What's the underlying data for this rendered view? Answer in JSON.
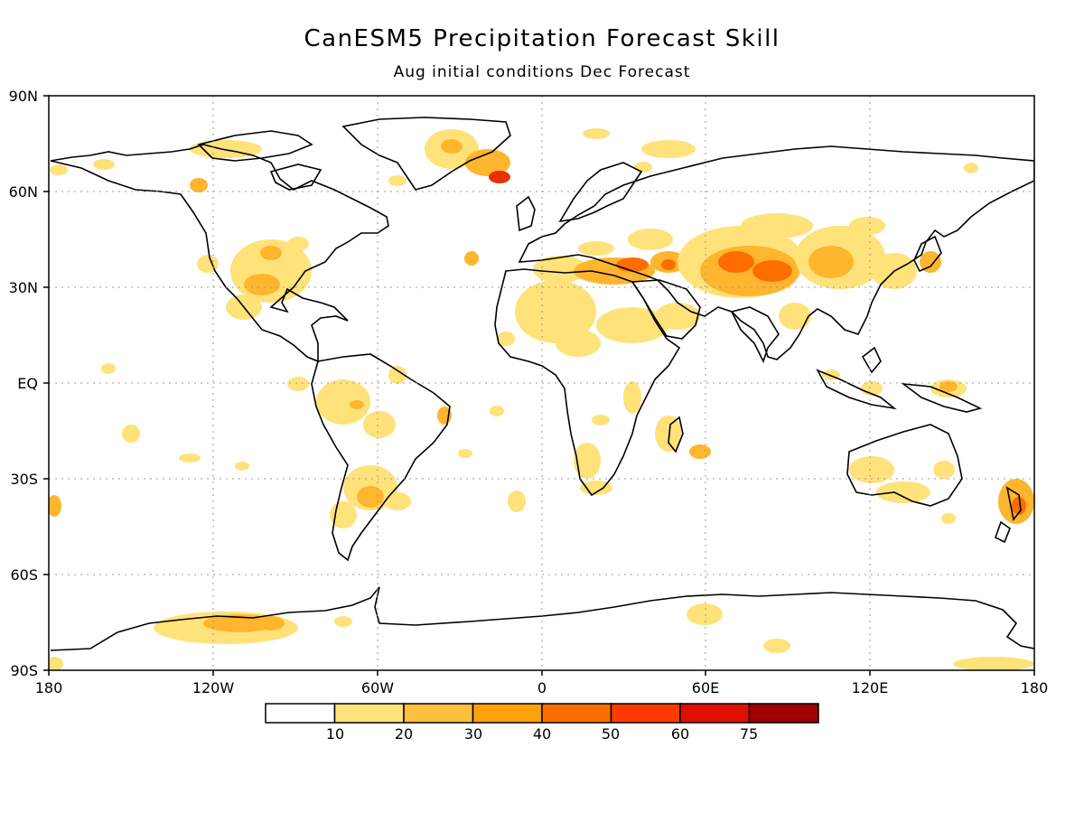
{
  "title": "CanESM5 Precipitation Forecast Skill",
  "subtitle": "Aug initial conditions  Dec Forecast",
  "lat_labels": [
    "90N",
    "60N",
    "30N",
    "EQ",
    "30S",
    "60S",
    "90S"
  ],
  "lon_labels": [
    "180",
    "120W",
    "60W",
    "0",
    "60E",
    "120E",
    "180"
  ],
  "colorbar": {
    "colors": [
      "#ffffff",
      "#ffe27a",
      "#ffc03d",
      "#ffa10a",
      "#ff6d00",
      "#ff3a00",
      "#e01000",
      "#a00000"
    ],
    "tick_labels": [
      "10",
      "20",
      "30",
      "40",
      "50",
      "60",
      "75"
    ]
  },
  "map": {
    "land_outline_color": "#000000",
    "grid_style": "dotted",
    "skill_color_light": "#ffe27a",
    "skill_color_mid": "#ffb52e",
    "skill_color_high": "#ff6d00",
    "skill_color_max": "#e83000"
  }
}
